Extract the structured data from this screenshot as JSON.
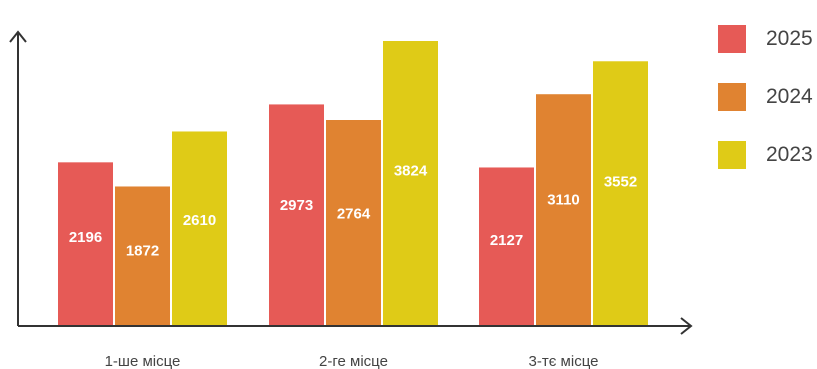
{
  "chart_data": {
    "type": "bar",
    "title": "",
    "xlabel": "",
    "ylabel": "",
    "categories": [
      "1-ше місце",
      "2-ге місце",
      "3-тє місце"
    ],
    "series": [
      {
        "name": "2025",
        "color": "#E65A56",
        "values": [
          2196,
          2973,
          2127
        ]
      },
      {
        "name": "2024",
        "color": "#E08331",
        "values": [
          1872,
          2764,
          3110
        ]
      },
      {
        "name": "2023",
        "color": "#DFCB17",
        "values": [
          2610,
          3824,
          3552
        ]
      }
    ],
    "ylim": [
      0,
      3824
    ],
    "grid": false,
    "data_labels": true,
    "legend_position": "right"
  }
}
